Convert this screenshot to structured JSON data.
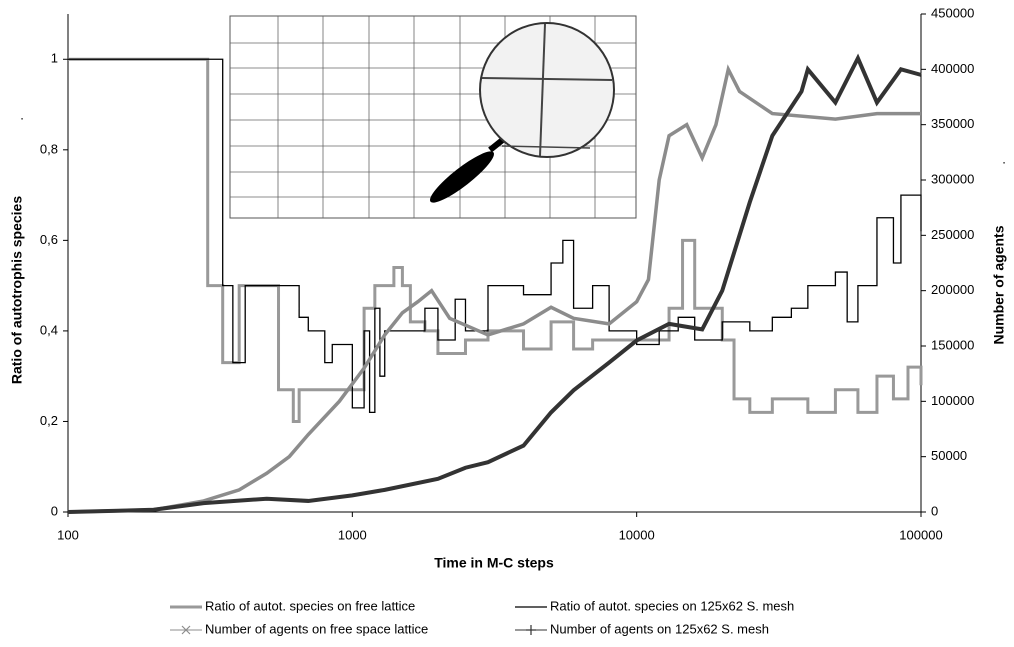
{
  "chart_data": {
    "type": "line",
    "x_label": "Time in M-C steps",
    "y_label": "Ratio of autotrophis species",
    "y2_label": "Number of agents",
    "annotations": [
      ".",
      "."
    ],
    "xscale": "log",
    "xlim": [
      100,
      100000
    ],
    "xticks": [
      100,
      1000,
      10000,
      100000
    ],
    "ylim": [
      0,
      1.1
    ],
    "yticks": [
      0,
      {
        "value": 0.2,
        "label": "0,2"
      },
      {
        "value": 0.4,
        "label": "0,4"
      },
      {
        "value": 0.6,
        "label": "0,6"
      },
      {
        "value": 0.8,
        "label": "0,8"
      },
      1
    ],
    "y2lim": [
      0,
      450000
    ],
    "y2ticks": [
      0,
      50000,
      100000,
      150000,
      200000,
      250000,
      300000,
      350000,
      400000,
      450000
    ],
    "grid": false,
    "legend": "bottom",
    "series": [
      {
        "name": "Ratio of autot. species on free lattice",
        "color": "#999999",
        "width": 3,
        "marker": "none",
        "step": true,
        "x": [
          100,
          310,
          350,
          400,
          550,
          560,
          620,
          650,
          1100,
          1200,
          1400,
          1500,
          1600,
          1800,
          2000,
          2500,
          3000,
          4000,
          5000,
          6000,
          7000,
          8000,
          10000,
          13000,
          14500,
          16000,
          20000,
          22000,
          25000,
          30000,
          40000,
          50000,
          60000,
          70000,
          80000,
          90000,
          100000
        ],
        "values": [
          1,
          0.5,
          0.33,
          0.5,
          0.27,
          0.27,
          0.2,
          0.27,
          0.45,
          0.5,
          0.54,
          0.5,
          0.42,
          0.4,
          0.35,
          0.38,
          0.4,
          0.36,
          0.42,
          0.36,
          0.38,
          0.38,
          0.38,
          0.45,
          0.6,
          0.45,
          0.38,
          0.25,
          0.22,
          0.25,
          0.22,
          0.27,
          0.22,
          0.3,
          0.25,
          0.32,
          0.28
        ]
      },
      {
        "name": "Ratio of autot. species on 125x62 S. mesh",
        "color": "#000000",
        "width": 1.3,
        "marker": "none",
        "step": true,
        "x": [
          100,
          350,
          380,
          420,
          650,
          700,
          800,
          850,
          1000,
          1100,
          1150,
          1200,
          1250,
          1300,
          1800,
          2000,
          2300,
          2500,
          3000,
          4000,
          5000,
          5500,
          6000,
          7000,
          8000,
          10000,
          12000,
          14000,
          16000,
          20000,
          25000,
          30000,
          35000,
          40000,
          50000,
          55000,
          60000,
          70000,
          80000,
          85000,
          100000
        ],
        "values": [
          1,
          0.5,
          0.33,
          0.5,
          0.43,
          0.4,
          0.33,
          0.37,
          0.23,
          0.4,
          0.22,
          0.45,
          0.3,
          0.4,
          0.45,
          0.38,
          0.47,
          0.4,
          0.5,
          0.48,
          0.55,
          0.6,
          0.45,
          0.5,
          0.4,
          0.37,
          0.4,
          0.43,
          0.38,
          0.42,
          0.4,
          0.43,
          0.45,
          0.5,
          0.53,
          0.42,
          0.5,
          0.65,
          0.55,
          0.7,
          0.62
        ]
      },
      {
        "name": "Number of agents on free space lattice",
        "color": "#8c8c8c",
        "width": 3.5,
        "marker": "x",
        "axis": "y2",
        "step": false,
        "x": [
          100,
          200,
          300,
          400,
          500,
          600,
          700,
          900,
          1100,
          1300,
          1500,
          1700,
          1900,
          2200,
          3000,
          4000,
          5000,
          6000,
          8000,
          10000,
          11000,
          12000,
          13000,
          15000,
          17000,
          19000,
          21000,
          23000,
          30000,
          50000,
          70000,
          100000
        ],
        "values": [
          0,
          2000,
          10000,
          20000,
          35000,
          50000,
          70000,
          100000,
          130000,
          160000,
          180000,
          190000,
          200000,
          175000,
          160000,
          170000,
          185000,
          175000,
          170000,
          190000,
          210000,
          300000,
          340000,
          350000,
          320000,
          350000,
          400000,
          380000,
          360000,
          355000,
          360000,
          360000
        ]
      },
      {
        "name": "Number of agents on 125x62 S. mesh",
        "color": "#333333",
        "width": 4,
        "marker": "+",
        "axis": "y2",
        "step": false,
        "x": [
          100,
          200,
          300,
          500,
          700,
          1000,
          1300,
          2000,
          2500,
          3000,
          4000,
          5000,
          6000,
          8000,
          10000,
          13000,
          17000,
          20000,
          25000,
          30000,
          38000,
          40000,
          50000,
          60000,
          70000,
          85000,
          100000
        ],
        "values": [
          0,
          2000,
          8000,
          12000,
          10000,
          15000,
          20000,
          30000,
          40000,
          45000,
          60000,
          90000,
          110000,
          135000,
          155000,
          170000,
          165000,
          200000,
          280000,
          340000,
          380000,
          400000,
          370000,
          410000,
          370000,
          400000,
          395000
        ]
      }
    ]
  }
}
